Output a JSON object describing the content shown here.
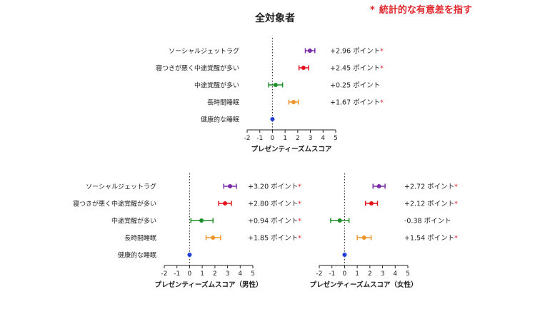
{
  "note": {
    "star": "*",
    "text": "統計的な有意差を指す"
  },
  "main_title": "全対象者",
  "colors": {
    "significance": "#e0262b",
    "ソーシャルジェットラグ": "#7b2aa8",
    "寝つきが悪く中途覚醒が多い": "#e3131b",
    "中途覚醒が多い": "#1e8f2a",
    "長時間睡眠": "#f0952a",
    "健康的な睡眠": "#1f3fd6"
  },
  "chart_data": [
    {
      "type": "forest",
      "title": "",
      "xlabel": "プレゼンティーズムスコア",
      "xlim": [
        -2,
        5
      ],
      "xticks": [
        -2,
        -1,
        0,
        1,
        2,
        3,
        4,
        5
      ],
      "categories": [
        "ソーシャルジェットラグ",
        "寝つきが悪く中途覚醒が多い",
        "中途覚醒が多い",
        "長時間睡眠",
        "健康的な睡眠"
      ],
      "values": [
        2.96,
        2.45,
        0.25,
        1.67,
        0
      ],
      "ci_low": [
        2.6,
        2.1,
        -0.3,
        1.3,
        0
      ],
      "ci_high": [
        3.35,
        2.85,
        0.8,
        2.05,
        0
      ],
      "labels": [
        "+2.96 ポイント",
        "+2.45 ポイント",
        "+0.25 ポイント",
        "+1.67 ポイント",
        ""
      ],
      "significant": [
        true,
        true,
        false,
        true,
        false
      ]
    },
    {
      "type": "forest",
      "title": "",
      "xlabel": "プレゼンティーズムスコア（男性）",
      "xlim": [
        -2,
        5
      ],
      "xticks": [
        -2,
        -1,
        0,
        1,
        2,
        3,
        4,
        5
      ],
      "categories": [
        "ソーシャルジェットラグ",
        "寝つきが悪く中途覚醒が多い",
        "中途覚醒が多い",
        "長時間睡眠",
        "健康的な睡眠"
      ],
      "values": [
        3.2,
        2.8,
        0.94,
        1.85,
        0
      ],
      "ci_low": [
        2.7,
        2.3,
        0.1,
        1.3,
        0
      ],
      "ci_high": [
        3.7,
        3.3,
        1.85,
        2.45,
        0
      ],
      "labels": [
        "+3.20 ポイント",
        "+2.80 ポイント",
        "+0.94 ポイント",
        "+1.85 ポイント",
        ""
      ],
      "significant": [
        true,
        true,
        true,
        true,
        false
      ]
    },
    {
      "type": "forest",
      "title": "",
      "xlabel": "プレゼンティーズムスコア（女性）",
      "xlim": [
        -2,
        5
      ],
      "xticks": [
        -2,
        -1,
        0,
        1,
        2,
        3,
        4,
        5
      ],
      "categories": [
        "ソーシャルジェットラグ",
        "寝つきが悪く中途覚醒が多い",
        "中途覚醒が多い",
        "長時間睡眠",
        "健康的な睡眠"
      ],
      "values": [
        2.72,
        2.12,
        -0.38,
        1.54,
        0
      ],
      "ci_low": [
        2.25,
        1.65,
        -1.1,
        1.0,
        0
      ],
      "ci_high": [
        3.2,
        2.6,
        0.35,
        2.1,
        0
      ],
      "labels": [
        "+2.72 ポイント",
        "+2.12 ポイント",
        "-0.38 ポイント",
        "+1.54 ポイント",
        ""
      ],
      "significant": [
        true,
        true,
        false,
        true,
        false
      ]
    }
  ]
}
